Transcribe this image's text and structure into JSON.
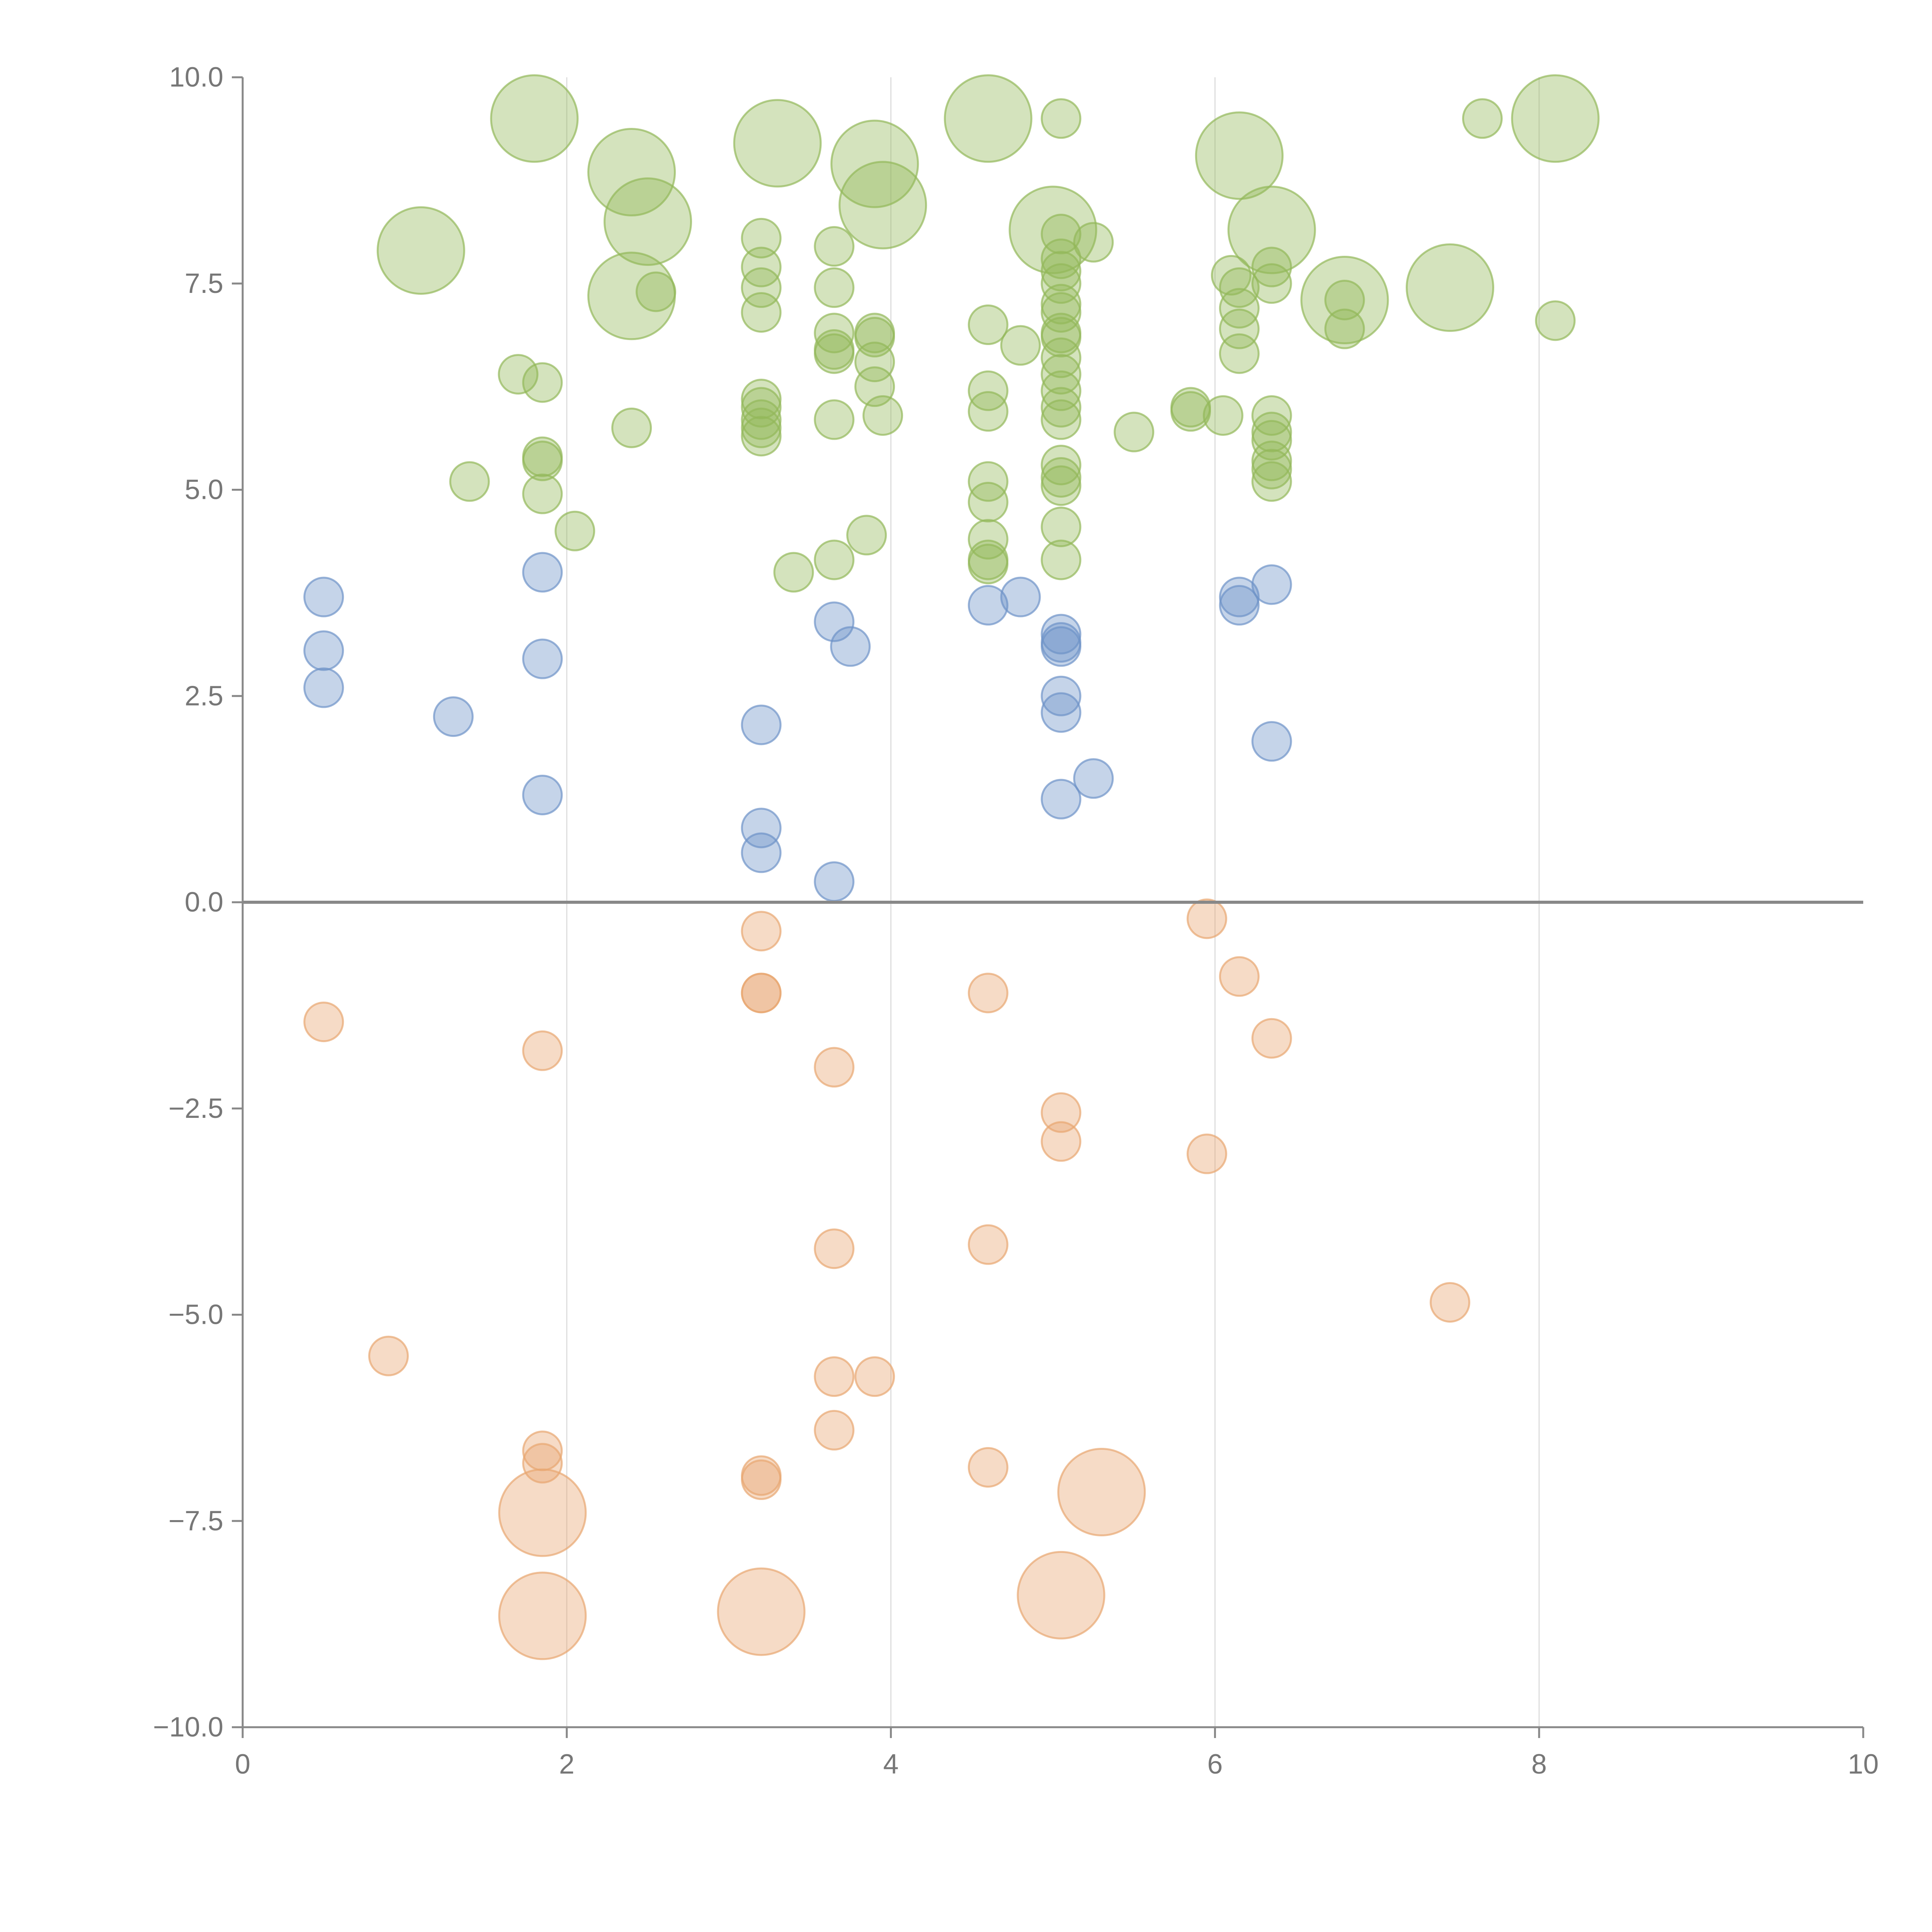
{
  "chart_data": {
    "type": "scatter",
    "title": "",
    "xlabel": "",
    "ylabel": "",
    "xlim": [
      0,
      10
    ],
    "ylim": [
      -10,
      10
    ],
    "x_ticks": [
      "0",
      "2",
      "4",
      "6",
      "8",
      "10"
    ],
    "y_ticks": [
      "−10.0",
      "−7.5",
      "−5.0",
      "−2.5",
      "0.0",
      "2.5",
      "5.0",
      "7.5",
      "10.0"
    ],
    "grid": "vertical",
    "legend": "none",
    "colors": {
      "high": "#93b85a",
      "mid": "#6d93c8",
      "low": "#e8a671"
    },
    "series": [
      {
        "name": "high",
        "points": [
          [
            1.1,
            7.9,
            2
          ],
          [
            1.8,
            9.5,
            2
          ],
          [
            2.4,
            8.85,
            2
          ],
          [
            2.5,
            8.25,
            2
          ],
          [
            2.4,
            7.35,
            2
          ],
          [
            3.3,
            9.2,
            2
          ],
          [
            3.9,
            8.95,
            2
          ],
          [
            3.95,
            8.45,
            2
          ],
          [
            4.6,
            9.5,
            2
          ],
          [
            5.0,
            8.15,
            2
          ],
          [
            6.15,
            9.05,
            2
          ],
          [
            6.35,
            8.15,
            2
          ],
          [
            6.8,
            7.3,
            2
          ],
          [
            7.45,
            7.45,
            2
          ],
          [
            8.1,
            9.5,
            2
          ],
          [
            5.05,
            9.5,
            1
          ],
          [
            7.65,
            9.5,
            1
          ],
          [
            2.55,
            7.4,
            1
          ],
          [
            1.7,
            6.4,
            1
          ],
          [
            1.85,
            6.3,
            1
          ],
          [
            1.85,
            5.35,
            1
          ],
          [
            1.85,
            5.4,
            1
          ],
          [
            1.85,
            4.95,
            1
          ],
          [
            1.4,
            5.1,
            1
          ],
          [
            2.05,
            4.5,
            1
          ],
          [
            2.4,
            5.75,
            1
          ],
          [
            3.2,
            8.05,
            1
          ],
          [
            3.2,
            7.7,
            1
          ],
          [
            3.2,
            7.45,
            1
          ],
          [
            3.2,
            7.15,
            1
          ],
          [
            3.2,
            6.1,
            1
          ],
          [
            3.2,
            6.0,
            1
          ],
          [
            3.2,
            5.85,
            1
          ],
          [
            3.2,
            5.75,
            1
          ],
          [
            3.2,
            5.65,
            1
          ],
          [
            3.65,
            7.95,
            1
          ],
          [
            3.65,
            7.45,
            1
          ],
          [
            3.65,
            6.9,
            1
          ],
          [
            3.65,
            6.7,
            1
          ],
          [
            3.65,
            6.65,
            1
          ],
          [
            3.65,
            5.85,
            1
          ],
          [
            3.65,
            4.15,
            1
          ],
          [
            3.4,
            4.0,
            1
          ],
          [
            3.9,
            6.9,
            1
          ],
          [
            3.9,
            6.85,
            1
          ],
          [
            3.9,
            6.55,
            1
          ],
          [
            3.9,
            6.25,
            1
          ],
          [
            3.95,
            5.9,
            1
          ],
          [
            3.85,
            4.45,
            1
          ],
          [
            4.6,
            7.0,
            1
          ],
          [
            4.6,
            6.2,
            1
          ],
          [
            4.6,
            5.95,
            1
          ],
          [
            4.6,
            5.1,
            1
          ],
          [
            4.6,
            4.85,
            1
          ],
          [
            4.6,
            4.4,
            1
          ],
          [
            4.6,
            4.1,
            1
          ],
          [
            4.6,
            4.15,
            1
          ],
          [
            4.8,
            6.75,
            1
          ],
          [
            5.05,
            8.1,
            1
          ],
          [
            5.05,
            7.8,
            1
          ],
          [
            5.05,
            7.65,
            1
          ],
          [
            5.05,
            7.5,
            1
          ],
          [
            5.05,
            7.25,
            1
          ],
          [
            5.05,
            7.15,
            1
          ],
          [
            5.05,
            6.9,
            1
          ],
          [
            5.05,
            6.85,
            1
          ],
          [
            5.05,
            6.6,
            1
          ],
          [
            5.05,
            6.4,
            1
          ],
          [
            5.05,
            6.2,
            1
          ],
          [
            5.05,
            6.0,
            1
          ],
          [
            5.05,
            5.85,
            1
          ],
          [
            5.05,
            5.3,
            1
          ],
          [
            5.05,
            5.15,
            1
          ],
          [
            5.05,
            5.05,
            1
          ],
          [
            5.05,
            4.55,
            1
          ],
          [
            5.05,
            4.15,
            1
          ],
          [
            5.25,
            8.0,
            1
          ],
          [
            5.5,
            5.7,
            1
          ],
          [
            5.85,
            6.0,
            1
          ],
          [
            5.85,
            5.95,
            1
          ],
          [
            6.05,
            5.9,
            1
          ],
          [
            6.1,
            7.6,
            1
          ],
          [
            6.15,
            7.45,
            1
          ],
          [
            6.15,
            7.2,
            1
          ],
          [
            6.15,
            6.95,
            1
          ],
          [
            6.15,
            6.65,
            1
          ],
          [
            6.35,
            7.7,
            1
          ],
          [
            6.35,
            7.5,
            1
          ],
          [
            6.35,
            5.9,
            1
          ],
          [
            6.35,
            5.7,
            1
          ],
          [
            6.35,
            5.6,
            1
          ],
          [
            6.35,
            5.35,
            1
          ],
          [
            6.35,
            5.25,
            1
          ],
          [
            6.35,
            5.1,
            1
          ],
          [
            6.8,
            6.95,
            1
          ],
          [
            6.8,
            7.3,
            1
          ],
          [
            8.1,
            7.05,
            1
          ]
        ]
      },
      {
        "name": "mid",
        "points": [
          [
            0.5,
            3.7,
            1
          ],
          [
            0.5,
            3.05,
            1
          ],
          [
            0.5,
            2.6,
            1
          ],
          [
            1.3,
            2.25,
            1
          ],
          [
            1.85,
            4.0,
            1
          ],
          [
            1.85,
            2.95,
            1
          ],
          [
            1.85,
            1.3,
            1
          ],
          [
            3.2,
            2.15,
            1
          ],
          [
            3.2,
            0.9,
            1
          ],
          [
            3.2,
            0.6,
            1
          ],
          [
            3.65,
            3.4,
            1
          ],
          [
            3.75,
            3.1,
            1
          ],
          [
            3.65,
            0.25,
            1
          ],
          [
            4.6,
            3.6,
            1
          ],
          [
            4.8,
            3.7,
            1
          ],
          [
            5.05,
            3.25,
            1
          ],
          [
            5.05,
            3.15,
            1
          ],
          [
            5.05,
            3.1,
            1
          ],
          [
            5.05,
            2.5,
            1
          ],
          [
            5.05,
            2.3,
            1
          ],
          [
            5.05,
            1.25,
            1
          ],
          [
            5.25,
            1.5,
            1
          ],
          [
            6.15,
            3.7,
            1
          ],
          [
            6.15,
            3.6,
            1
          ],
          [
            6.35,
            3.85,
            1
          ],
          [
            6.35,
            1.95,
            1
          ]
        ]
      },
      {
        "name": "low",
        "points": [
          [
            0.5,
            -1.45,
            1
          ],
          [
            0.9,
            -5.5,
            1
          ],
          [
            1.85,
            -1.8,
            1
          ],
          [
            1.85,
            -6.65,
            1
          ],
          [
            1.85,
            -6.8,
            1
          ],
          [
            3.2,
            -0.35,
            1
          ],
          [
            3.2,
            -1.1,
            1
          ],
          [
            3.2,
            -1.1,
            1
          ],
          [
            3.2,
            -6.95,
            1
          ],
          [
            3.2,
            -7.0,
            1
          ],
          [
            3.65,
            -2.0,
            1
          ],
          [
            3.65,
            -4.2,
            1
          ],
          [
            3.65,
            -5.75,
            1
          ],
          [
            3.9,
            -5.75,
            1
          ],
          [
            3.65,
            -6.4,
            1
          ],
          [
            4.6,
            -1.1,
            1
          ],
          [
            4.6,
            -4.15,
            1
          ],
          [
            4.6,
            -6.85,
            1
          ],
          [
            5.05,
            -2.55,
            1
          ],
          [
            5.05,
            -2.9,
            1
          ],
          [
            5.95,
            -0.2,
            1
          ],
          [
            5.95,
            -3.05,
            1
          ],
          [
            6.15,
            -0.9,
            1
          ],
          [
            6.35,
            -1.65,
            1
          ],
          [
            7.45,
            -4.85,
            1
          ],
          [
            1.85,
            -7.4,
            2
          ],
          [
            1.85,
            -8.65,
            2
          ],
          [
            3.2,
            -8.6,
            2
          ],
          [
            5.05,
            -8.4,
            2
          ],
          [
            5.3,
            -7.15,
            2
          ]
        ]
      }
    ]
  }
}
